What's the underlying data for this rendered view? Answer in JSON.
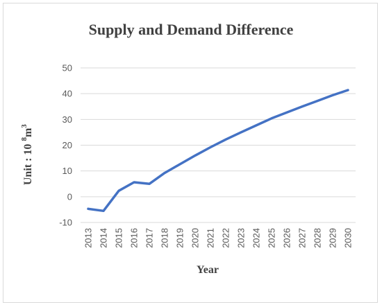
{
  "chart_data": {
    "type": "line",
    "title": "Supply and Demand Difference",
    "xlabel": "Year",
    "ylabel": {
      "prefix": "Unit : 10 ",
      "exp1": "8",
      "mid": "m",
      "exp2": "3"
    },
    "categories": [
      "2013",
      "2014",
      "2015",
      "2016",
      "2017",
      "2018",
      "2019",
      "2020",
      "2021",
      "2022",
      "2023",
      "2024",
      "2025",
      "2026",
      "2027",
      "2028",
      "2029",
      "2030"
    ],
    "series": [
      {
        "values": [
          -4.7,
          -5.5,
          2.3,
          5.6,
          5.0,
          9.2,
          12.6,
          16.0,
          19.2,
          22.2,
          25.0,
          27.7,
          30.4,
          32.7,
          35.0,
          37.2,
          39.4,
          41.4
        ]
      }
    ],
    "ylim": [
      -10,
      50
    ],
    "yticks": [
      -10,
      0,
      10,
      20,
      30,
      40,
      50
    ],
    "grid": true,
    "line_color": "#4472c4"
  }
}
